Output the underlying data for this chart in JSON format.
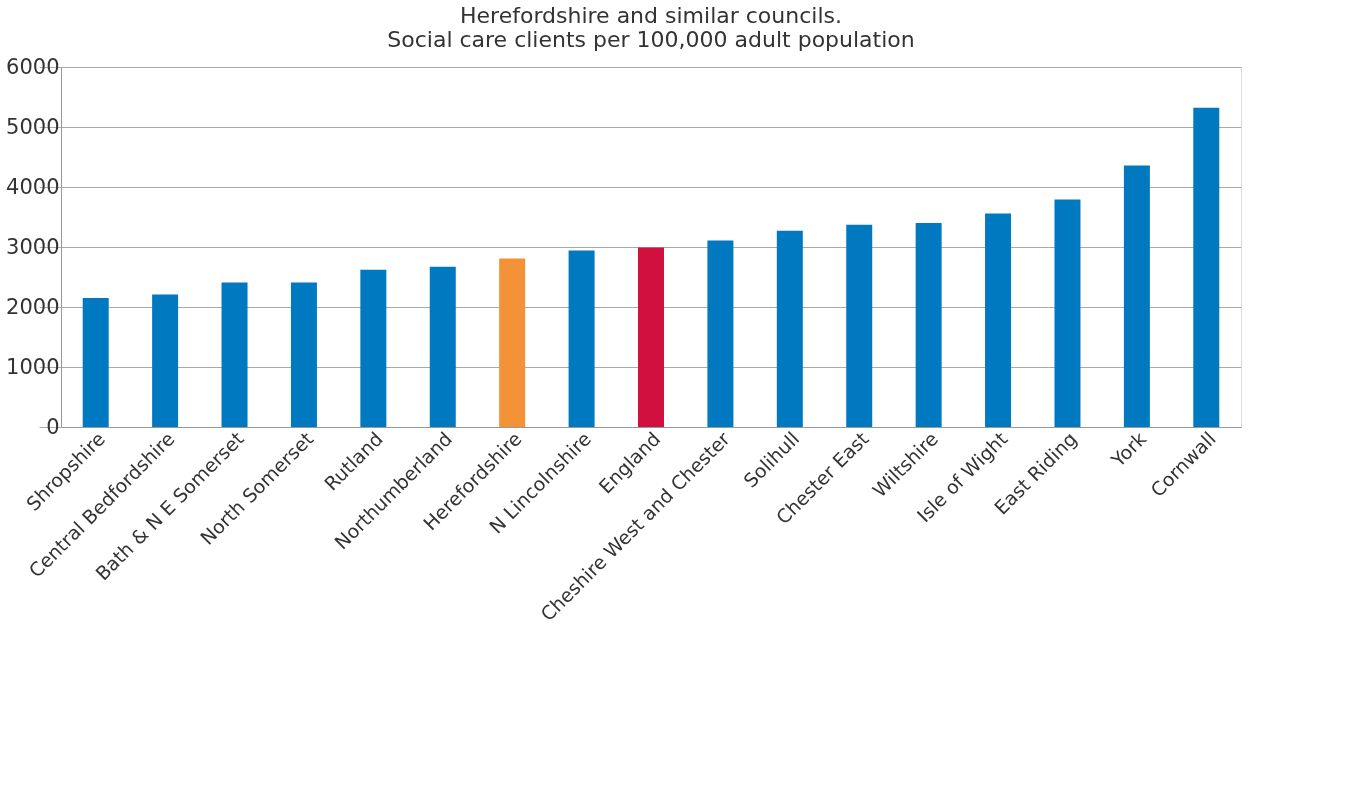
{
  "chart_data": {
    "type": "bar",
    "title": [
      "Herefordshire and similar councils.",
      "Social care clients per 100,000 adult population"
    ],
    "categories": [
      "Shropshire",
      "Central Bedfordshire",
      "Bath & N E Somerset",
      "North Somerset",
      "Rutland",
      "Northumberland",
      "Herefordshire",
      "N Lincolnshire",
      "England",
      "Cheshire West and Chester",
      "Solihull",
      "Chester East",
      "Wiltshire",
      "Isle of Wight",
      "East Riding",
      "York",
      "Cornwall"
    ],
    "values": [
      2150,
      2210,
      2410,
      2410,
      2620,
      2670,
      2810,
      2940,
      2990,
      3110,
      3270,
      3370,
      3400,
      3560,
      3790,
      4360,
      5320
    ],
    "colors": [
      "#0079c1",
      "#0079c1",
      "#0079c1",
      "#0079c1",
      "#0079c1",
      "#0079c1",
      "#f39237",
      "#0079c1",
      "#d1103f",
      "#0079c1",
      "#0079c1",
      "#0079c1",
      "#0079c1",
      "#0079c1",
      "#0079c1",
      "#0079c1",
      "#0079c1"
    ],
    "ylim": [
      0,
      6000
    ],
    "yticks": [
      0,
      1000,
      2000,
      3000,
      4000,
      5000,
      6000
    ],
    "grid": "y"
  }
}
